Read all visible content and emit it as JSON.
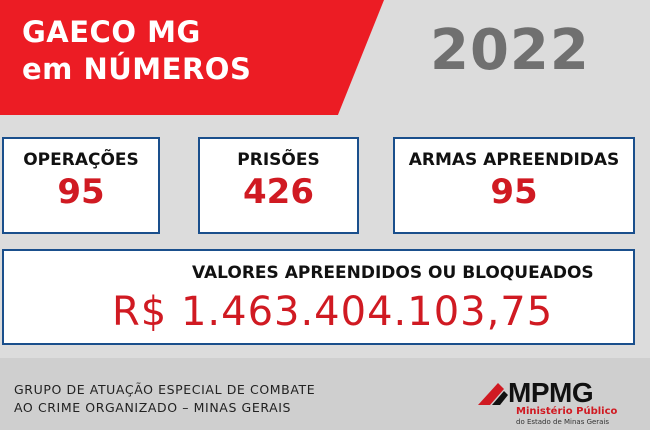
{
  "banner": {
    "line1": "GAECO MG",
    "line2": "em NÚMEROS",
    "year": "2022"
  },
  "stats": {
    "operacoes": {
      "label": "OPERAÇÕES",
      "value": "95"
    },
    "prisoes": {
      "label": "PRISÕES",
      "value": "426"
    },
    "armas": {
      "label": "ARMAS APREENDIDAS",
      "value": "95"
    },
    "valores": {
      "label": "VALORES APREENDIDOS OU BLOQUEADOS",
      "value": "R$ 1.463.404.103,75"
    }
  },
  "footer": {
    "line1": "GRUPO DE ATUAÇÃO ESPECIAL DE COMBATE",
    "line2": "AO CRIME ORGANIZADO – MINAS GERAIS"
  },
  "logo": {
    "name": "MPMG",
    "sub1": "Ministério Público",
    "sub2": "do Estado de Minas Gerais"
  },
  "colors": {
    "accent_red": "#ec1c24",
    "value_red": "#d01a22",
    "card_border": "#1a4f8c",
    "background": "#dcdcdc"
  }
}
